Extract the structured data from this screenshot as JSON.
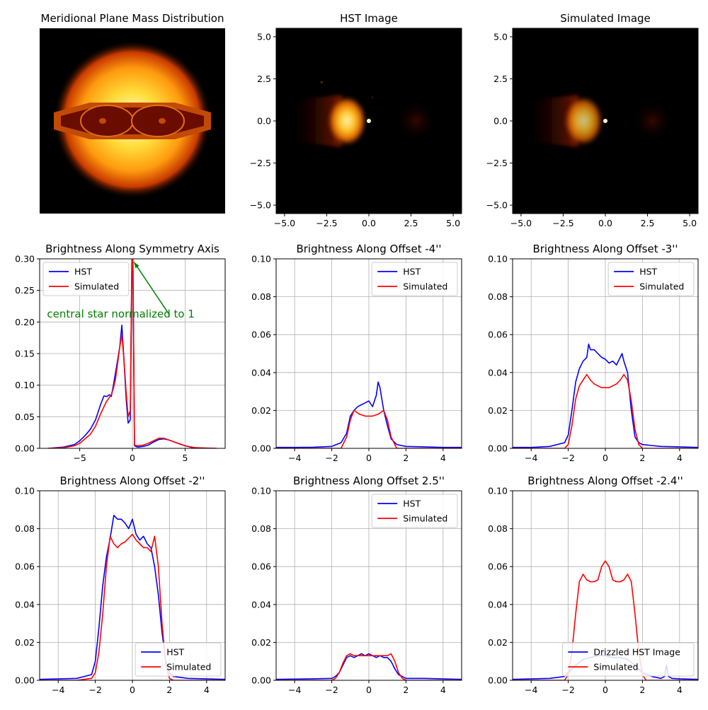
{
  "chart_data": [
    {
      "type": "image",
      "title": "Meridional Plane Mass Distribution",
      "axes_visible": false,
      "colormap": "afmhot",
      "description": "bright glowing sphere with two dark lobes and a central pinched disk"
    },
    {
      "type": "image",
      "title": "HST Image",
      "colormap": "afmhot",
      "xlim": [
        -5.5,
        5.5
      ],
      "ylim": [
        -5.5,
        5.5
      ],
      "xticks": [
        "-5.0",
        "-2.5",
        "0.0",
        "2.5",
        "5.0"
      ],
      "yticks": [
        "5.0",
        "2.5",
        "0.0",
        "-2.5",
        "-5.0"
      ]
    },
    {
      "type": "image",
      "title": "Simulated Image",
      "colormap": "afmhot",
      "xlim": [
        -5.5,
        5.5
      ],
      "ylim": [
        -5.5,
        5.5
      ],
      "xticks": [
        "-5.0",
        "-2.5",
        "0.0",
        "2.5",
        "5.0"
      ],
      "yticks": [
        "5.0",
        "2.5",
        "0.0",
        "-2.5",
        "-5.0"
      ]
    },
    {
      "type": "line",
      "title": "Brightness Along Symmetry Axis",
      "xlim": [
        -8.8,
        8.8
      ],
      "ylim": [
        0,
        0.3
      ],
      "xticks": [
        -5,
        0,
        5
      ],
      "yticks": [
        0.0,
        0.05,
        0.1,
        0.15,
        0.2,
        0.25,
        0.3
      ],
      "ytick_labels": [
        "0.00",
        "0.05",
        "0.10",
        "0.15",
        "0.20",
        "0.25",
        "0.30"
      ],
      "grid": true,
      "legend": "upper left",
      "annotation": {
        "text": "central star normalized to 1",
        "color": "#008000",
        "text_at": [
          -8.1,
          0.207
        ],
        "arrow_from": [
          0.85,
          0.222
        ],
        "arrow_to": [
          0.15,
          0.295
        ]
      },
      "series": [
        {
          "name": "HST",
          "color": "#0000ff",
          "x": [
            -8.0,
            -6.5,
            -5.5,
            -5.0,
            -4.5,
            -4.0,
            -3.5,
            -3.0,
            -2.7,
            -2.4,
            -2.2,
            -2.0,
            -1.8,
            -1.6,
            -1.4,
            -1.2,
            -1.0,
            -0.8,
            -0.6,
            -0.4,
            -0.2,
            -0.05,
            0.0,
            0.05,
            0.2,
            0.5,
            1.0,
            1.5,
            2.0,
            2.5,
            3.0,
            3.5,
            4.0,
            5.0,
            6.0,
            8.0
          ],
          "y": [
            0.0,
            0.002,
            0.006,
            0.012,
            0.02,
            0.03,
            0.045,
            0.07,
            0.083,
            0.082,
            0.085,
            0.082,
            0.1,
            0.12,
            0.14,
            0.16,
            0.195,
            0.14,
            0.08,
            0.04,
            0.045,
            0.3,
            0.3,
            0.3,
            0.004,
            0.002,
            0.003,
            0.005,
            0.01,
            0.014,
            0.015,
            0.013,
            0.01,
            0.004,
            0.0,
            0.0
          ]
        },
        {
          "name": "Simulated",
          "color": "#ff0000",
          "x": [
            -8.0,
            -6.5,
            -5.5,
            -5.0,
            -4.5,
            -4.0,
            -3.5,
            -3.0,
            -2.5,
            -2.0,
            -1.8,
            -1.6,
            -1.4,
            -1.2,
            -1.0,
            -0.8,
            -0.6,
            -0.4,
            -0.2,
            -0.05,
            0.0,
            0.05,
            0.2,
            0.5,
            1.0,
            1.5,
            2.0,
            2.5,
            3.0,
            3.5,
            4.0,
            5.0,
            6.0,
            8.0
          ],
          "y": [
            0.0,
            0.001,
            0.004,
            0.008,
            0.015,
            0.022,
            0.035,
            0.055,
            0.073,
            0.085,
            0.095,
            0.11,
            0.135,
            0.16,
            0.18,
            0.14,
            0.09,
            0.05,
            0.06,
            0.3,
            0.3,
            0.3,
            0.005,
            0.004,
            0.005,
            0.008,
            0.012,
            0.016,
            0.016,
            0.013,
            0.01,
            0.004,
            0.001,
            0.0
          ]
        }
      ]
    },
    {
      "type": "line",
      "title": "Brightness Along Offset -4''",
      "xlim": [
        -5,
        5
      ],
      "ylim": [
        0,
        0.1
      ],
      "xticks": [
        -4,
        -2,
        0,
        2,
        4
      ],
      "yticks": [
        0.0,
        0.02,
        0.04,
        0.06,
        0.08,
        0.1
      ],
      "ytick_labels": [
        "0.00",
        "0.02",
        "0.04",
        "0.06",
        "0.08",
        "0.10"
      ],
      "grid": true,
      "legend": "upper right",
      "series": [
        {
          "name": "HST",
          "color": "#0000ff",
          "x": [
            -5.0,
            -4.0,
            -3.0,
            -2.0,
            -1.5,
            -1.2,
            -1.0,
            -0.8,
            -0.6,
            -0.4,
            -0.2,
            0.0,
            0.2,
            0.4,
            0.5,
            0.6,
            0.7,
            0.8,
            1.0,
            1.2,
            1.5,
            2.0,
            3.0,
            4.0,
            5.0
          ],
          "y": [
            0.0005,
            0.0005,
            0.0006,
            0.001,
            0.003,
            0.008,
            0.017,
            0.02,
            0.022,
            0.023,
            0.024,
            0.025,
            0.022,
            0.028,
            0.035,
            0.032,
            0.026,
            0.02,
            0.012,
            0.005,
            0.002,
            0.001,
            0.0008,
            0.0005,
            0.0005
          ]
        },
        {
          "name": "Simulated",
          "color": "#ff0000",
          "x": [
            -5.0,
            -3.0,
            -2.0,
            -1.5,
            -1.2,
            -1.0,
            -0.8,
            -0.5,
            -0.2,
            0.0,
            0.2,
            0.5,
            0.8,
            1.0,
            1.2,
            1.5,
            2.0,
            3.0,
            5.0
          ],
          "y": [
            0.0,
            0.0,
            0.0,
            0.0,
            0.006,
            0.015,
            0.02,
            0.018,
            0.017,
            0.017,
            0.017,
            0.018,
            0.02,
            0.015,
            0.006,
            0.0,
            0.0,
            0.0,
            0.0
          ]
        }
      ]
    },
    {
      "type": "line",
      "title": "Brightness Along Offset -3''",
      "xlim": [
        -5,
        5
      ],
      "ylim": [
        0,
        0.1
      ],
      "xticks": [
        -4,
        -2,
        0,
        2,
        4
      ],
      "yticks": [
        0.0,
        0.02,
        0.04,
        0.06,
        0.08,
        0.1
      ],
      "ytick_labels": [
        "0.00",
        "0.02",
        "0.04",
        "0.06",
        "0.08",
        "0.10"
      ],
      "grid": true,
      "legend": "upper right",
      "series": [
        {
          "name": "HST",
          "color": "#0000ff",
          "x": [
            -5.0,
            -4.0,
            -3.0,
            -2.2,
            -2.0,
            -1.8,
            -1.6,
            -1.4,
            -1.2,
            -1.0,
            -0.9,
            -0.8,
            -0.6,
            -0.4,
            -0.2,
            0.0,
            0.2,
            0.4,
            0.6,
            0.8,
            0.9,
            1.0,
            1.2,
            1.4,
            1.6,
            1.8,
            2.0,
            2.5,
            3.0,
            4.0,
            5.0
          ],
          "y": [
            0.0005,
            0.0005,
            0.001,
            0.003,
            0.007,
            0.02,
            0.035,
            0.042,
            0.046,
            0.048,
            0.055,
            0.052,
            0.052,
            0.05,
            0.048,
            0.047,
            0.045,
            0.046,
            0.044,
            0.048,
            0.05,
            0.046,
            0.04,
            0.02,
            0.006,
            0.003,
            0.002,
            0.0015,
            0.001,
            0.0008,
            0.0005
          ]
        },
        {
          "name": "Simulated",
          "color": "#ff0000",
          "x": [
            -5.0,
            -3.0,
            -2.2,
            -2.0,
            -1.8,
            -1.6,
            -1.4,
            -1.2,
            -1.0,
            -0.8,
            -0.6,
            -0.4,
            -0.2,
            0.0,
            0.2,
            0.4,
            0.6,
            0.8,
            1.0,
            1.2,
            1.4,
            1.6,
            1.8,
            2.0,
            2.2,
            3.0,
            5.0
          ],
          "y": [
            0.0,
            0.0,
            0.0,
            0.002,
            0.012,
            0.026,
            0.033,
            0.036,
            0.039,
            0.036,
            0.034,
            0.033,
            0.032,
            0.032,
            0.032,
            0.033,
            0.034,
            0.036,
            0.039,
            0.036,
            0.025,
            0.01,
            0.002,
            0.0,
            0.0,
            0.0,
            0.0
          ]
        }
      ]
    },
    {
      "type": "line",
      "title": "Brightness Along Offset -2''",
      "xlim": [
        -5,
        5
      ],
      "ylim": [
        0,
        0.1
      ],
      "xticks": [
        -4,
        -2,
        0,
        2,
        4
      ],
      "yticks": [
        0.0,
        0.02,
        0.04,
        0.06,
        0.08,
        0.1
      ],
      "ytick_labels": [
        "0.00",
        "0.02",
        "0.04",
        "0.06",
        "0.08",
        "0.10"
      ],
      "grid": true,
      "legend": "lower right",
      "series": [
        {
          "name": "HST",
          "color": "#0000ff",
          "x": [
            -5.0,
            -3.0,
            -2.2,
            -2.0,
            -1.8,
            -1.6,
            -1.4,
            -1.2,
            -1.0,
            -0.8,
            -0.6,
            -0.4,
            -0.2,
            0.0,
            0.2,
            0.4,
            0.6,
            0.8,
            1.0,
            1.2,
            1.4,
            1.6,
            1.8,
            2.0,
            2.2,
            3.0,
            5.0
          ],
          "y": [
            0.0005,
            0.001,
            0.003,
            0.01,
            0.028,
            0.05,
            0.065,
            0.075,
            0.087,
            0.085,
            0.085,
            0.083,
            0.08,
            0.085,
            0.077,
            0.074,
            0.076,
            0.072,
            0.07,
            0.06,
            0.045,
            0.025,
            0.01,
            0.004,
            0.002,
            0.001,
            0.0005
          ]
        },
        {
          "name": "Simulated",
          "color": "#ff0000",
          "x": [
            -5.0,
            -3.0,
            -2.2,
            -2.0,
            -1.8,
            -1.6,
            -1.4,
            -1.2,
            -1.0,
            -0.8,
            -0.6,
            -0.4,
            -0.2,
            0.0,
            0.2,
            0.4,
            0.6,
            0.8,
            1.0,
            1.2,
            1.4,
            1.6,
            1.8,
            2.0,
            2.2,
            3.0,
            5.0
          ],
          "y": [
            0.0,
            0.0,
            0.001,
            0.004,
            0.015,
            0.035,
            0.06,
            0.076,
            0.072,
            0.07,
            0.072,
            0.073,
            0.075,
            0.077,
            0.074,
            0.072,
            0.07,
            0.07,
            0.068,
            0.076,
            0.06,
            0.03,
            0.008,
            0.001,
            0.0,
            0.0,
            0.0
          ]
        }
      ]
    },
    {
      "type": "line",
      "title": "Brightness Along Offset 2.5''",
      "xlim": [
        -5,
        5
      ],
      "ylim": [
        0,
        0.1
      ],
      "xticks": [
        -4,
        -2,
        0,
        2,
        4
      ],
      "yticks": [
        0.0,
        0.02,
        0.04,
        0.06,
        0.08,
        0.1
      ],
      "ytick_labels": [
        "0.00",
        "0.02",
        "0.04",
        "0.06",
        "0.08",
        "0.10"
      ],
      "grid": true,
      "legend": "upper right",
      "series": [
        {
          "name": "HST",
          "color": "#0000ff",
          "x": [
            -5.0,
            -3.0,
            -2.0,
            -1.8,
            -1.6,
            -1.4,
            -1.2,
            -1.0,
            -0.8,
            -0.6,
            -0.4,
            -0.2,
            0.0,
            0.2,
            0.4,
            0.6,
            0.8,
            1.0,
            1.2,
            1.4,
            1.6,
            1.8,
            2.0,
            3.0,
            5.0
          ],
          "y": [
            0.0005,
            0.0008,
            0.001,
            0.002,
            0.004,
            0.008,
            0.012,
            0.013,
            0.012,
            0.013,
            0.014,
            0.013,
            0.014,
            0.013,
            0.012,
            0.013,
            0.012,
            0.012,
            0.01,
            0.006,
            0.003,
            0.002,
            0.001,
            0.001,
            0.0005
          ]
        },
        {
          "name": "Simulated",
          "color": "#ff0000",
          "x": [
            -5.0,
            -3.0,
            -2.0,
            -1.8,
            -1.6,
            -1.4,
            -1.2,
            -1.0,
            -0.8,
            -0.4,
            0.0,
            0.4,
            0.8,
            1.0,
            1.2,
            1.4,
            1.6,
            1.8,
            2.0,
            3.0,
            5.0
          ],
          "y": [
            0.0,
            0.0,
            0.0,
            0.001,
            0.004,
            0.009,
            0.013,
            0.014,
            0.013,
            0.013,
            0.013,
            0.013,
            0.013,
            0.013,
            0.014,
            0.01,
            0.004,
            0.001,
            0.0,
            0.0,
            0.0
          ]
        }
      ]
    },
    {
      "type": "line",
      "title": "Brightness Along Offset -2.4''",
      "xlim": [
        -5,
        5
      ],
      "ylim": [
        0,
        0.1
      ],
      "xticks": [
        -4,
        -2,
        0,
        2,
        4
      ],
      "yticks": [
        0.0,
        0.02,
        0.04,
        0.06,
        0.08,
        0.1
      ],
      "ytick_labels": [
        "0.00",
        "0.02",
        "0.04",
        "0.06",
        "0.08",
        "0.10"
      ],
      "grid": true,
      "legend": "lower right",
      "series": [
        {
          "name": "Drizzled HST Image",
          "color": "#0000ff",
          "x": [
            -5.0,
            -3.0,
            -2.2,
            -2.0,
            -1.6,
            -1.2,
            -0.8,
            -0.4,
            0.0,
            0.4,
            0.8,
            1.2,
            1.6,
            2.0,
            2.5,
            3.0,
            3.2,
            3.3,
            3.4,
            3.6,
            4.0,
            5.0
          ],
          "y": [
            0.0005,
            0.001,
            0.002,
            0.004,
            0.008,
            0.011,
            0.012,
            0.013,
            0.013,
            0.012,
            0.012,
            0.011,
            0.008,
            0.004,
            0.002,
            0.001,
            0.002,
            0.008,
            0.002,
            0.001,
            0.0008,
            0.0005
          ]
        },
        {
          "name": "Simulated",
          "color": "#ff0000",
          "x": [
            -5.0,
            -3.0,
            -2.2,
            -2.0,
            -1.8,
            -1.6,
            -1.4,
            -1.2,
            -1.0,
            -0.8,
            -0.6,
            -0.4,
            -0.2,
            0.0,
            0.2,
            0.4,
            0.6,
            0.8,
            1.0,
            1.2,
            1.4,
            1.6,
            1.8,
            2.0,
            2.2,
            3.0,
            5.0
          ],
          "y": [
            0.0,
            0.0,
            0.0,
            0.003,
            0.015,
            0.035,
            0.052,
            0.056,
            0.053,
            0.052,
            0.052,
            0.053,
            0.06,
            0.063,
            0.06,
            0.053,
            0.052,
            0.052,
            0.053,
            0.056,
            0.052,
            0.035,
            0.015,
            0.003,
            0.0,
            0.0,
            0.0
          ]
        }
      ]
    }
  ]
}
